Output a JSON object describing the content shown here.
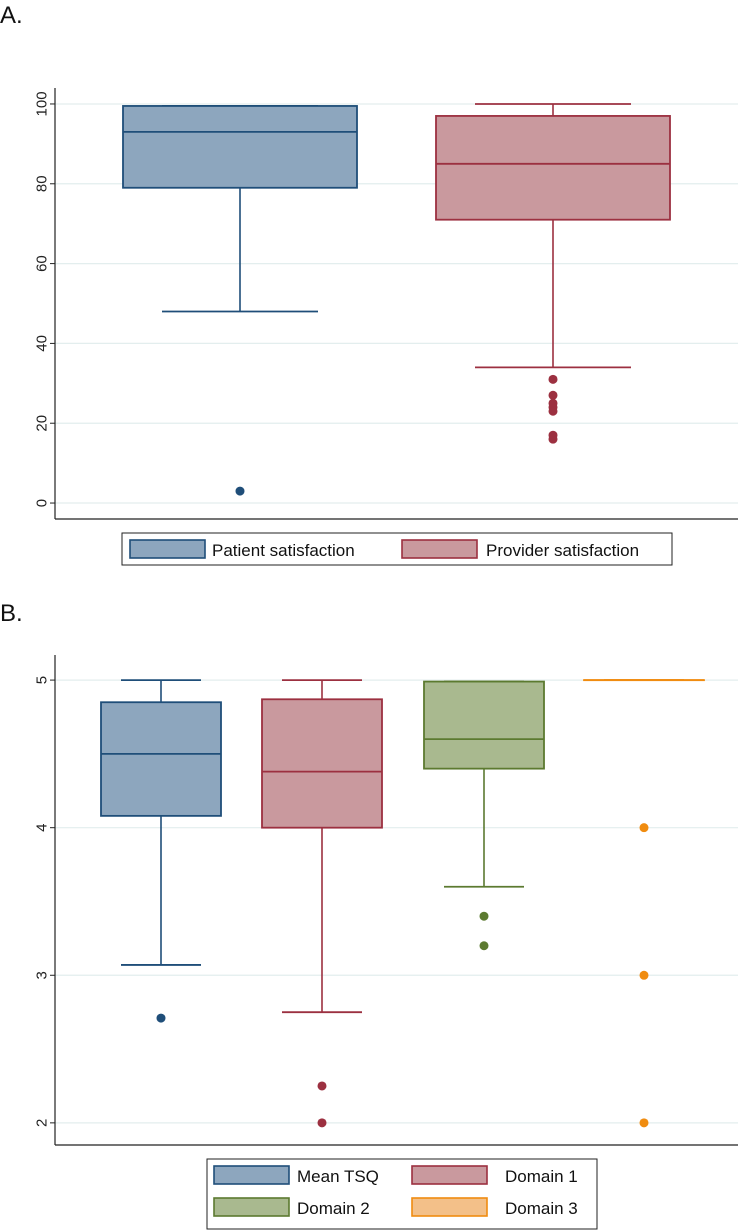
{
  "chart_data": [
    {
      "panel_label": "A.",
      "type": "box",
      "title": "",
      "xlabel": "",
      "ylabel": "",
      "ylim": [
        -4,
        104
      ],
      "yticks": [
        0,
        20,
        40,
        60,
        80,
        100
      ],
      "yticks_rotated": true,
      "grid": true,
      "legend_position": "bottom",
      "series": [
        {
          "name": "Patient satisfaction",
          "color": "#1f4e79",
          "fill": "#8da6be",
          "min": 48,
          "q1": 79,
          "median": 93,
          "q3": 99.5,
          "max": 99.5,
          "outliers": [
            3
          ]
        },
        {
          "name": "Provider satisfaction",
          "color": "#9c3040",
          "fill": "#c9999e",
          "min": 34,
          "q1": 71,
          "median": 85,
          "q3": 97,
          "max": 100,
          "outliers": [
            31,
            27,
            25,
            24,
            23,
            17,
            16
          ]
        }
      ]
    },
    {
      "panel_label": "B.",
      "type": "box",
      "title": "",
      "xlabel": "",
      "ylabel": "",
      "ylim": [
        1.85,
        5.17
      ],
      "yticks": [
        2,
        3,
        4,
        5
      ],
      "yticks_rotated": true,
      "grid": true,
      "legend_position": "bottom",
      "series": [
        {
          "name": "Mean TSQ",
          "color": "#1f4e79",
          "fill": "#8da6be",
          "min": 3.07,
          "q1": 4.08,
          "median": 4.5,
          "q3": 4.85,
          "max": 5,
          "outliers": [
            2.71
          ]
        },
        {
          "name": "Domain 1",
          "color": "#9c3040",
          "fill": "#c9999e",
          "min": 2.75,
          "q1": 4.0,
          "median": 4.38,
          "q3": 4.87,
          "max": 5,
          "outliers": [
            2.25,
            2.0
          ]
        },
        {
          "name": "Domain 2",
          "color": "#5c7a30",
          "fill": "#a9b98f",
          "min": 3.6,
          "q1": 4.4,
          "median": 4.6,
          "q3": 4.99,
          "max": 4.99,
          "outliers": [
            3.4,
            3.2
          ]
        },
        {
          "name": "Domain 3",
          "color": "#f08c10",
          "fill": "#f3c089",
          "min": 5,
          "q1": 5,
          "median": 5,
          "q3": 5,
          "max": 5,
          "outliers": [
            4.0,
            3.0,
            2.0
          ]
        }
      ]
    }
  ]
}
